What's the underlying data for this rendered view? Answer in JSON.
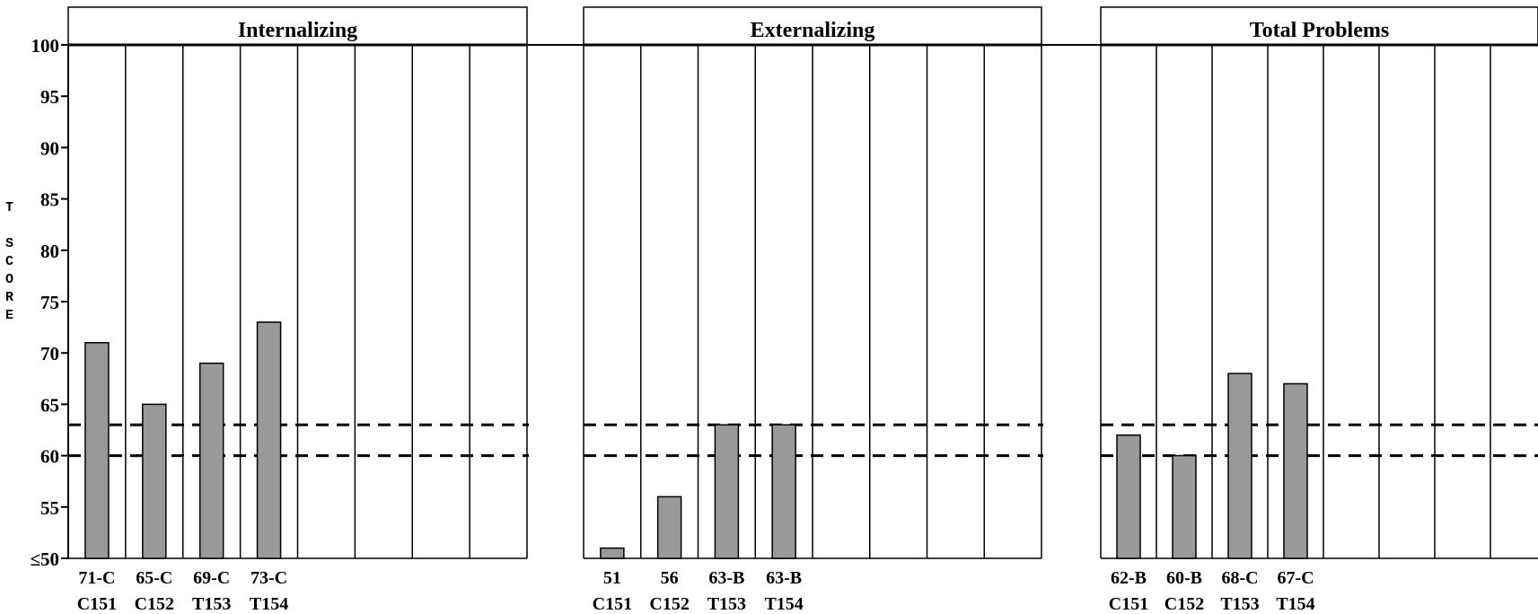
{
  "chart_data": {
    "type": "bar",
    "ylabel": "T SCORE",
    "ylim": [
      50,
      100
    ],
    "yticks": [
      {
        "value": 100,
        "label": "100"
      },
      {
        "value": 95,
        "label": "95"
      },
      {
        "value": 90,
        "label": "90"
      },
      {
        "value": 85,
        "label": "85"
      },
      {
        "value": 80,
        "label": "80"
      },
      {
        "value": 75,
        "label": "75"
      },
      {
        "value": 70,
        "label": "70"
      },
      {
        "value": 65,
        "label": "65"
      },
      {
        "value": 60,
        "label": "60"
      },
      {
        "value": 55,
        "label": "55"
      },
      {
        "value": 50,
        "label": "≤50"
      }
    ],
    "reference_lines": [
      60,
      63
    ],
    "bar_color": "#999999",
    "panels": [
      {
        "title": "Internalizing",
        "categories": [
          "C151",
          "C152",
          "T153",
          "T154"
        ],
        "values": [
          71,
          65,
          69,
          73
        ],
        "labels": [
          "71-C",
          "65-C",
          "69-C",
          "73-C"
        ]
      },
      {
        "title": "Externalizing",
        "categories": [
          "C151",
          "C152",
          "T153",
          "T154"
        ],
        "values": [
          51,
          56,
          63,
          63
        ],
        "labels": [
          "51",
          "56",
          "63-B",
          "63-B"
        ]
      },
      {
        "title": "Total Problems",
        "categories": [
          "C151",
          "C152",
          "T153",
          "T154"
        ],
        "values": [
          62,
          60,
          68,
          67
        ],
        "labels": [
          "62-B",
          "60-B",
          "68-C",
          "67-C"
        ]
      }
    ]
  }
}
